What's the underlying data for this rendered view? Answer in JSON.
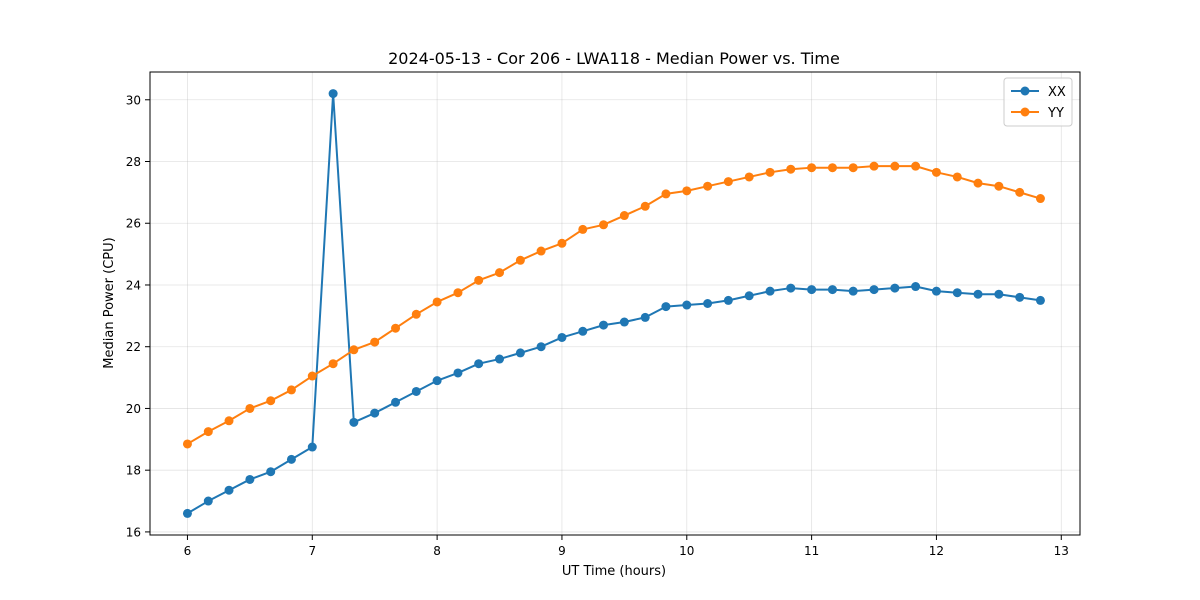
{
  "chart_data": {
    "type": "line",
    "title": "2024-05-13 - Cor 206 - LWA118 - Median Power vs. Time",
    "xlabel": "UT Time (hours)",
    "ylabel": "Median Power (CPU)",
    "xlim": [
      5.7,
      13.15
    ],
    "ylim": [
      15.9,
      30.9
    ],
    "xticks": [
      6,
      7,
      8,
      9,
      10,
      11,
      12,
      13
    ],
    "yticks": [
      16,
      18,
      20,
      22,
      24,
      26,
      28,
      30
    ],
    "grid": true,
    "legend_position": "top-right",
    "marker": "circle",
    "series": [
      {
        "name": "XX",
        "color": "#1f77b4",
        "x": [
          6.0,
          6.167,
          6.333,
          6.5,
          6.667,
          6.833,
          7.0,
          7.167,
          7.333,
          7.5,
          7.667,
          7.833,
          8.0,
          8.167,
          8.333,
          8.5,
          8.667,
          8.833,
          9.0,
          9.167,
          9.333,
          9.5,
          9.667,
          9.833,
          10.0,
          10.167,
          10.333,
          10.5,
          10.667,
          10.833,
          11.0,
          11.167,
          11.333,
          11.5,
          11.667,
          11.833,
          12.0,
          12.167,
          12.333,
          12.5,
          12.667,
          12.833
        ],
        "y": [
          16.6,
          17.0,
          17.35,
          17.7,
          17.95,
          18.35,
          18.75,
          30.2,
          19.55,
          19.85,
          20.2,
          20.55,
          20.9,
          21.15,
          21.45,
          21.6,
          21.8,
          22.0,
          22.3,
          22.5,
          22.7,
          22.8,
          22.95,
          23.3,
          23.35,
          23.4,
          23.5,
          23.65,
          23.8,
          23.9,
          23.85,
          23.85,
          23.8,
          23.85,
          23.9,
          23.95,
          23.8,
          23.75,
          23.7,
          23.7,
          23.6,
          23.5
        ]
      },
      {
        "name": "YY",
        "color": "#ff7f0e",
        "x": [
          6.0,
          6.167,
          6.333,
          6.5,
          6.667,
          6.833,
          7.0,
          7.167,
          7.333,
          7.5,
          7.667,
          7.833,
          8.0,
          8.167,
          8.333,
          8.5,
          8.667,
          8.833,
          9.0,
          9.167,
          9.333,
          9.5,
          9.667,
          9.833,
          10.0,
          10.167,
          10.333,
          10.5,
          10.667,
          10.833,
          11.0,
          11.167,
          11.333,
          11.5,
          11.667,
          11.833,
          12.0,
          12.167,
          12.333,
          12.5,
          12.667,
          12.833
        ],
        "y": [
          18.85,
          19.25,
          19.6,
          20.0,
          20.25,
          20.6,
          21.05,
          21.45,
          21.9,
          22.15,
          22.6,
          23.05,
          23.45,
          23.75,
          24.15,
          24.4,
          24.8,
          25.1,
          25.35,
          25.8,
          25.95,
          26.25,
          26.55,
          26.95,
          27.05,
          27.2,
          27.35,
          27.5,
          27.65,
          27.75,
          27.8,
          27.8,
          27.8,
          27.85,
          27.85,
          27.85,
          27.65,
          27.5,
          27.3,
          27.2,
          27.0,
          26.8
        ]
      }
    ]
  }
}
